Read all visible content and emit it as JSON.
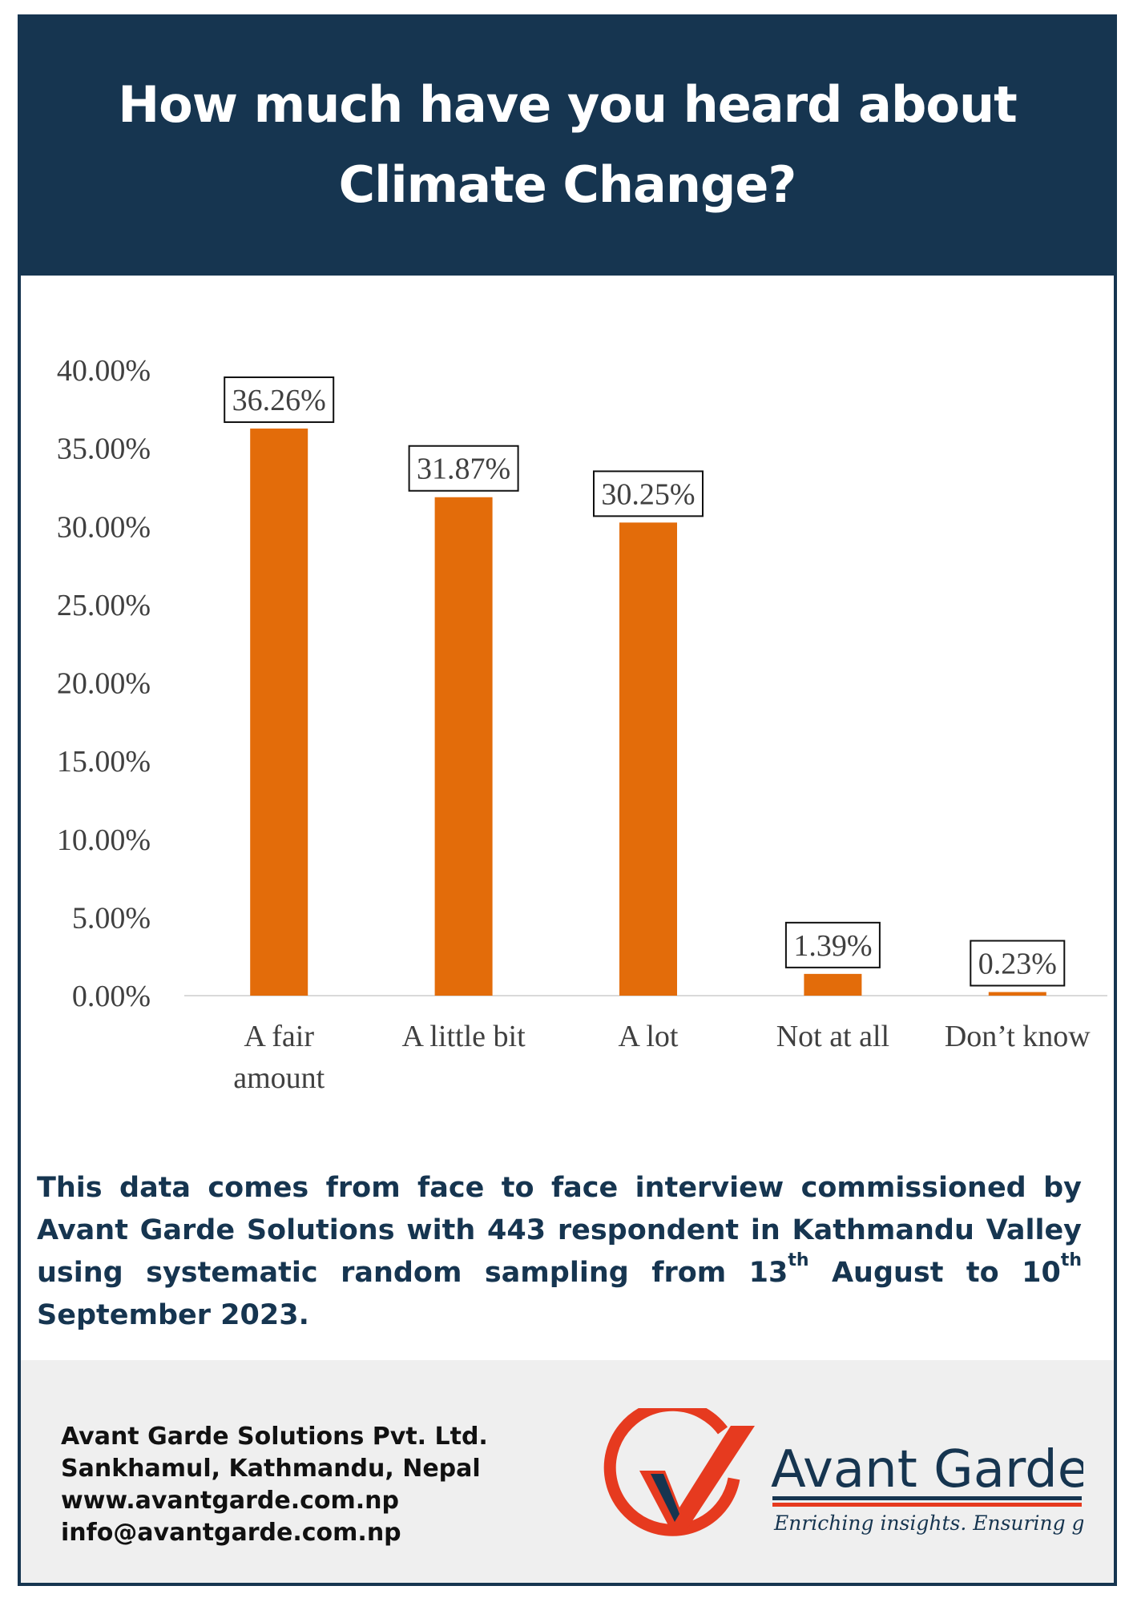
{
  "header": {
    "title_line1": "How much have you heard about",
    "title_line2": "Climate Change?"
  },
  "chart_data": {
    "type": "bar",
    "categories": [
      [
        "A fair",
        "amount"
      ],
      [
        "A little bit"
      ],
      [
        "A lot"
      ],
      [
        "Not at all"
      ],
      [
        "Don’t know"
      ]
    ],
    "values": [
      36.26,
      31.87,
      30.25,
      1.39,
      0.23
    ],
    "value_labels": [
      "36.26%",
      "31.87%",
      "30.25%",
      "1.39%",
      "0.23%"
    ],
    "yticks": [
      "0.00%",
      "5.00%",
      "10.00%",
      "15.00%",
      "20.00%",
      "25.00%",
      "30.00%",
      "35.00%",
      "40.00%"
    ],
    "ylim": [
      0,
      40
    ],
    "grid": false,
    "bar_color": "#e36c0a"
  },
  "note": {
    "part1": "This data comes from face to face interview commissioned by Avant Garde Solutions with 443 respondent in Kathmandu Valley using systematic random sampling from 13",
    "sup1": "th",
    "part2": " August to  10",
    "sup2": "th",
    "part3": "  September 2023."
  },
  "footer": {
    "company": "Avant Garde Solutions Pvt. Ltd.",
    "address": "Sankhamul, Kathmandu, Nepal",
    "website": "www.avantgarde.com.np",
    "email": "info@avantgarde.com.np",
    "logo_name": "Avant Garde",
    "logo_tagline": "Enriching insights. Ensuring growth."
  },
  "colors": {
    "navy": "#163550",
    "orange": "#e36c0a",
    "footer_bg": "#efefef",
    "logo_red": "#e63a1f"
  }
}
